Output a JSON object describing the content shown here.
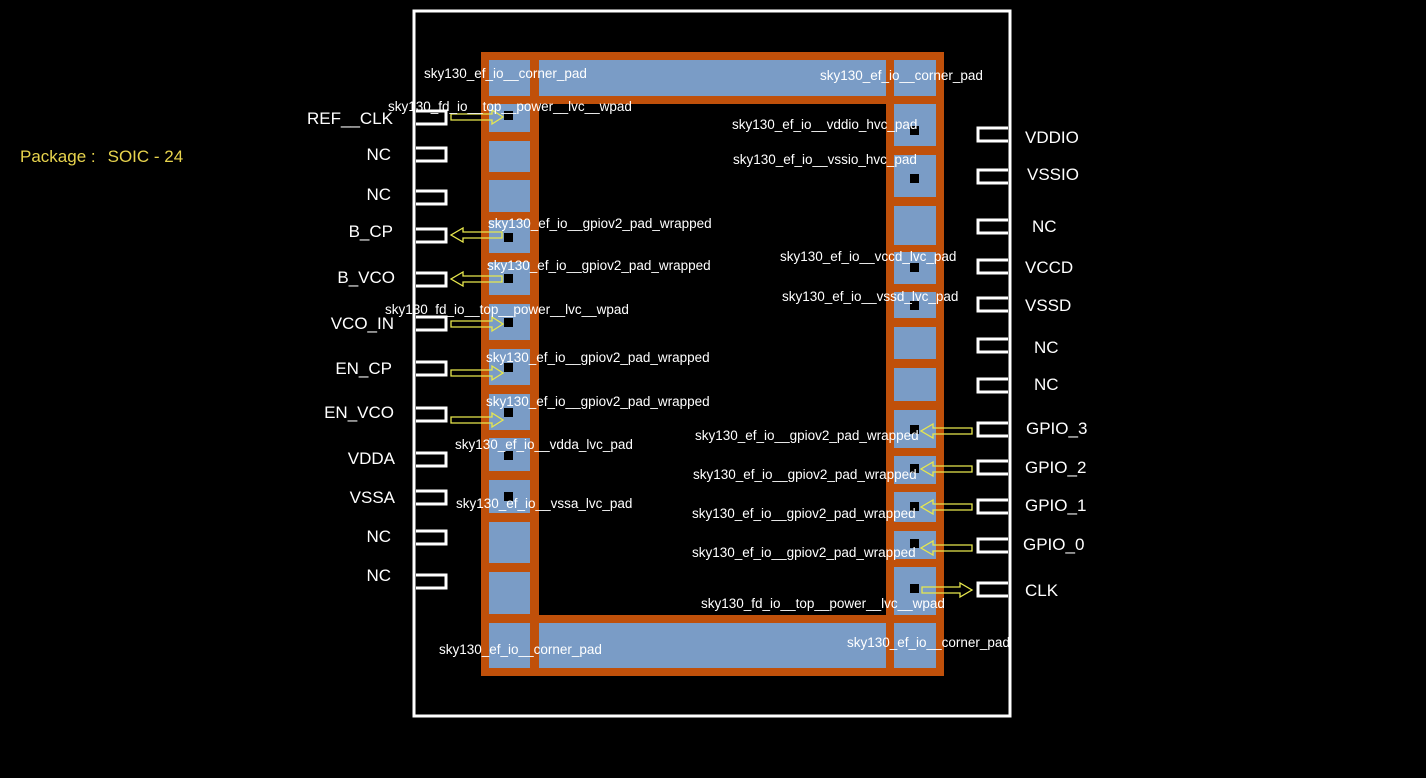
{
  "package": {
    "label": "Package :",
    "value": "SOIC - 24"
  },
  "colors": {
    "background": "#000000",
    "outline": "#ffffff",
    "ring": "#c0500a",
    "pad": "#7a9cc6",
    "label_accent": "#e8d44d",
    "arrow": "#e8e84d"
  },
  "left_pins": [
    "REF__CLK",
    "NC",
    "NC",
    "B_CP",
    "B_VCO",
    "VCO_IN",
    "EN_CP",
    "EN_VCO",
    "VDDA",
    "VSSA",
    "NC",
    "NC"
  ],
  "right_pins": [
    "VDDIO",
    "VSSIO",
    "NC",
    "VCCD",
    "VSSD",
    "NC",
    "NC",
    "GPIO_3",
    "GPIO_2",
    "GPIO_1",
    "GPIO_0",
    "CLK"
  ],
  "pads": {
    "corner_tl": "sky130_ef_io__corner_pad",
    "corner_tr": "sky130_ef_io__corner_pad",
    "corner_bl": "sky130_ef_io__corner_pad",
    "corner_br": "sky130_ef_io__corner_pad",
    "l1": "sky130_fd_io__top__power__lvc__wpad",
    "l4": "sky130_ef_io__gpiov2_pad_wrapped",
    "l5": "sky130_ef_io__gpiov2_pad_wrapped",
    "l6": "sky130_fd_io__top__power__lvc__wpad",
    "l7": "sky130_ef_io__gpiov2_pad_wrapped",
    "l8": "sky130_ef_io__gpiov2_pad_wrapped",
    "l9": "sky130_ef_io__vdda_lvc_pad",
    "l10": "sky130_ef_io__vssa_lvc_pad",
    "r1": "sky130_ef_io__vddio_hvc_pad",
    "r2": "sky130_ef_io__vssio_hvc_pad",
    "r4": "sky130_ef_io__vccd_lvc_pad",
    "r5": "sky130_ef_io__vssd_lvc_pad",
    "r8": "sky130_ef_io__gpiov2_pad_wrapped",
    "r9": "sky130_ef_io__gpiov2_pad_wrapped",
    "r10": "sky130_ef_io__gpiov2_pad_wrapped",
    "r11": "sky130_ef_io__gpiov2_pad_wrapped",
    "r12": "sky130_fd_io__top__power__lvc__wpad"
  }
}
